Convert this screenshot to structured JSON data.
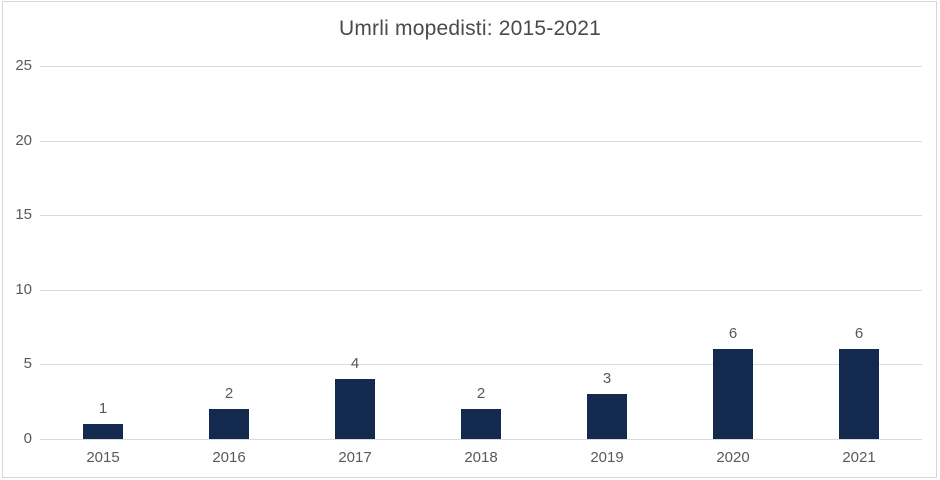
{
  "chart_data": {
    "type": "bar",
    "title": "Umrli mopedisti: 2015-2021",
    "categories": [
      "2015",
      "2016",
      "2017",
      "2018",
      "2019",
      "2020",
      "2021"
    ],
    "values": [
      1,
      2,
      4,
      2,
      3,
      6,
      6
    ],
    "xlabel": "",
    "ylabel": "",
    "ylim": [
      0,
      25
    ],
    "ytick_step": 5,
    "yticks": [
      0,
      5,
      10,
      15,
      20,
      25
    ],
    "grid": "horizontal",
    "legend": "none",
    "data_labels_shown": true,
    "colors": {
      "bar": "#14294e",
      "gridline": "#dadada",
      "axis_text": "#595959",
      "title_text": "#4a4a4a",
      "frame_border": "#d7d7d7",
      "background": "#ffffff"
    }
  }
}
